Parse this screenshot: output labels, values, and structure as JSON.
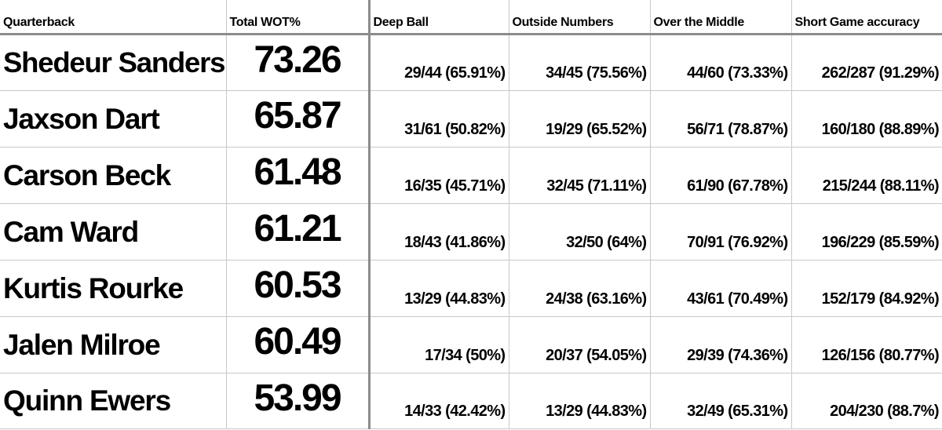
{
  "chart_data": {
    "type": "table",
    "columns": [
      "Quarterback",
      "Total WOT%",
      "Deep Ball",
      "Outside Numbers",
      "Over the Middle",
      "Short Game accuracy"
    ],
    "rows": [
      {
        "quarterback": "Shedeur Sanders",
        "total_wot": "73.26",
        "deep_ball": "29/44 (65.91%)",
        "outside_numbers": "34/45 (75.56%)",
        "over_the_middle": "44/60 (73.33%)",
        "short_game": "262/287 (91.29%)"
      },
      {
        "quarterback": "Jaxson Dart",
        "total_wot": "65.87",
        "deep_ball": "31/61 (50.82%)",
        "outside_numbers": "19/29 (65.52%)",
        "over_the_middle": "56/71 (78.87%)",
        "short_game": "160/180 (88.89%)"
      },
      {
        "quarterback": "Carson Beck",
        "total_wot": "61.48",
        "deep_ball": "16/35 (45.71%)",
        "outside_numbers": "32/45 (71.11%)",
        "over_the_middle": "61/90 (67.78%)",
        "short_game": "215/244 (88.11%)"
      },
      {
        "quarterback": "Cam Ward",
        "total_wot": "61.21",
        "deep_ball": "18/43 (41.86%)",
        "outside_numbers": "32/50 (64%)",
        "over_the_middle": "70/91 (76.92%)",
        "short_game": "196/229 (85.59%)"
      },
      {
        "quarterback": "Kurtis Rourke",
        "total_wot": "60.53",
        "deep_ball": "13/29 (44.83%)",
        "outside_numbers": "24/38  (63.16%)",
        "over_the_middle": "43/61 (70.49%)",
        "short_game": "152/179 (84.92%)"
      },
      {
        "quarterback": "Jalen Milroe",
        "total_wot": "60.49",
        "deep_ball": "17/34 (50%)",
        "outside_numbers": "20/37 (54.05%)",
        "over_the_middle": "29/39 (74.36%)",
        "short_game": "126/156 (80.77%)"
      },
      {
        "quarterback": "Quinn Ewers",
        "total_wot": "53.99",
        "deep_ball": "14/33 (42.42%)",
        "outside_numbers": "13/29 (44.83%)",
        "over_the_middle": "32/49 (65.31%)",
        "short_game": "204/230 (88.7%)"
      }
    ]
  }
}
